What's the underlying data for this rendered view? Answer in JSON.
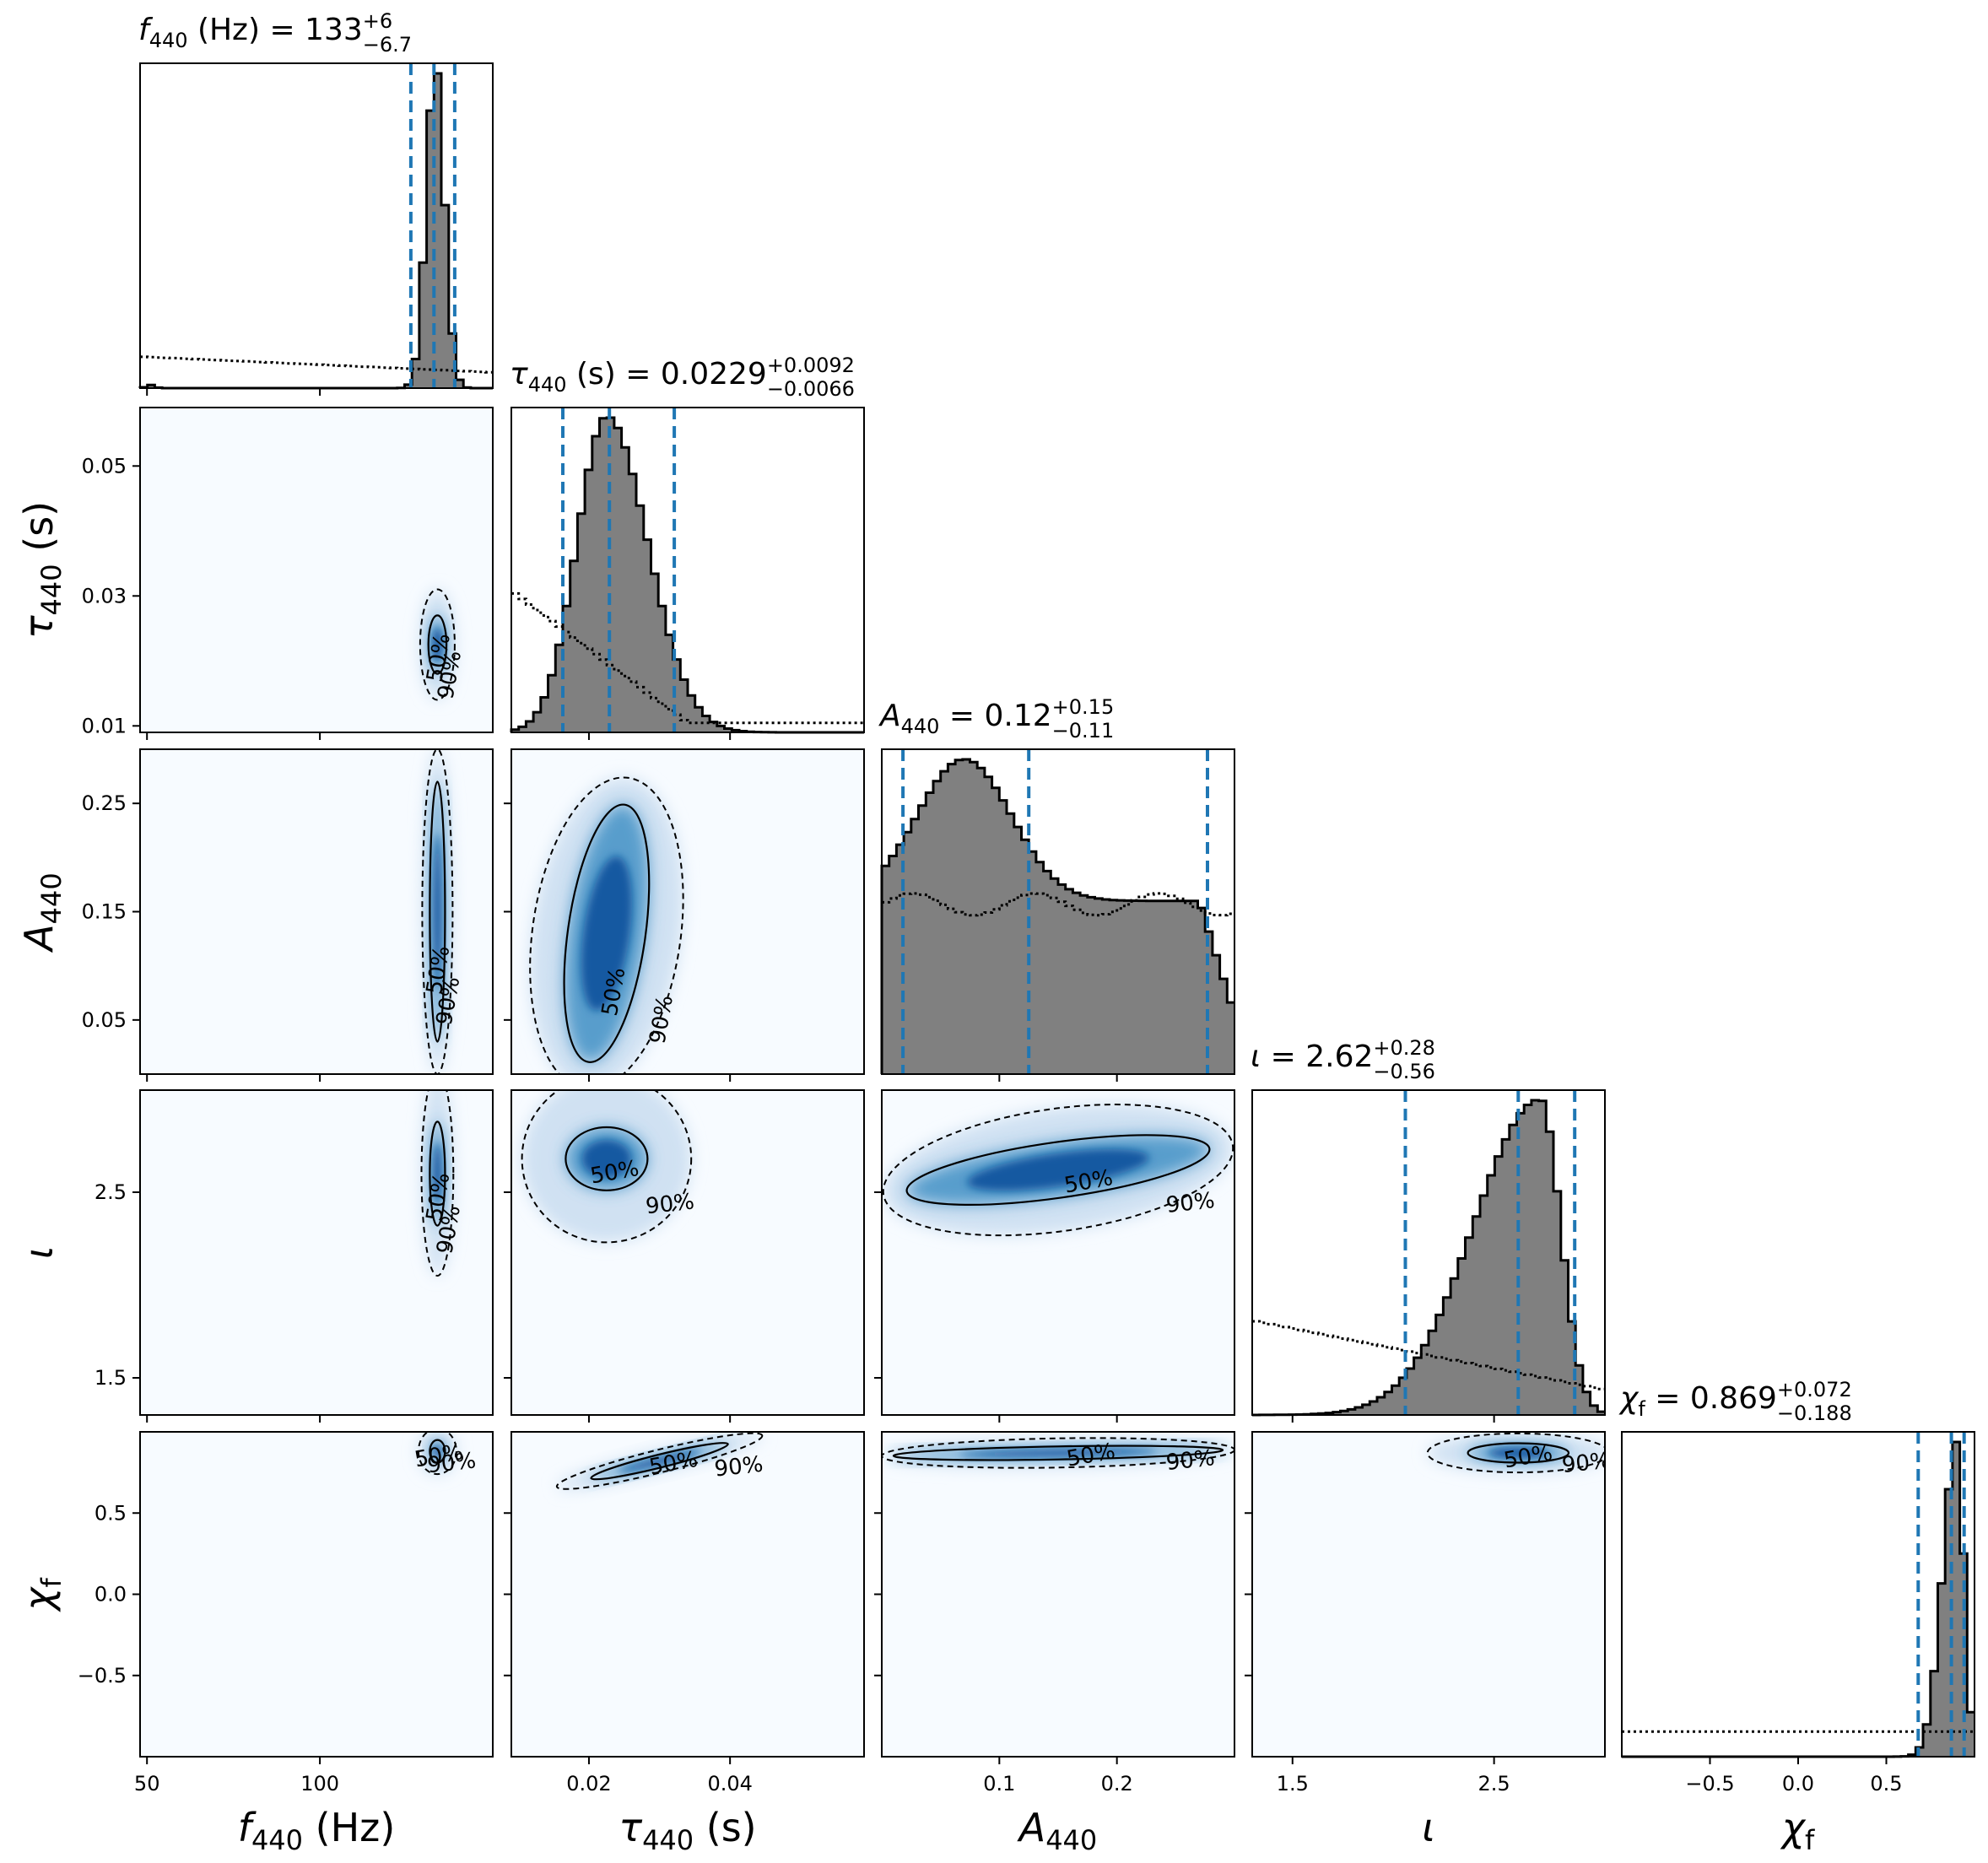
{
  "chart_data": {
    "type": "corner",
    "colors": {
      "hist_fill": "#808080",
      "hist_edge": "#000000",
      "quantile_line": "#1f77b4",
      "density_low": "#f7fbff",
      "density_high": "#08519c"
    },
    "params": [
      {
        "key": "f",
        "label": "f_440 (Hz)",
        "range": [
          48,
          150
        ],
        "ticks": [
          50,
          100
        ],
        "value": "133",
        "err_plus": "+6",
        "err_minus": "−6.7",
        "title": [
          "f",
          "440",
          " (Hz) = 133",
          "+6",
          "−6.7"
        ],
        "quantiles": [
          126.3,
          133,
          139
        ],
        "peak": 133,
        "width": 2.4
      },
      {
        "key": "tau",
        "label": "τ_440 (s)",
        "range": [
          0.009,
          0.059
        ],
        "ticks": [
          0.01,
          0.03,
          0.05
        ],
        "xticks": [
          0.02,
          0.04
        ],
        "value": "0.0229",
        "err_plus": "+0.0092",
        "err_minus": "−0.0066",
        "title": [
          "τ",
          "440",
          " (s) = 0.0229",
          "+0.0092",
          "−0.0066"
        ],
        "quantiles": [
          0.0163,
          0.0229,
          0.0321
        ],
        "peak": 0.0225,
        "width": 0.0045
      },
      {
        "key": "A",
        "label": "A_440",
        "range": [
          0.0,
          0.3
        ],
        "ticks": [
          0.05,
          0.15,
          0.25
        ],
        "xticks": [
          0.1,
          0.2
        ],
        "value": "0.12",
        "err_plus": "+0.15",
        "err_minus": "−0.11",
        "title": [
          "A",
          "440",
          " = 0.12",
          "+0.15",
          "−0.11"
        ],
        "quantiles": [
          0.018,
          0.125,
          0.277
        ],
        "peak": 0.07,
        "width": 0.05
      },
      {
        "key": "iota",
        "label": "ι",
        "range": [
          1.3,
          3.05
        ],
        "ticks": [
          1.5,
          2.5
        ],
        "value": "2.62",
        "err_plus": "+0.28",
        "err_minus": "−0.56",
        "title": [
          "ι",
          "",
          " = 2.62",
          "+0.28",
          "−0.56"
        ],
        "quantiles": [
          2.06,
          2.62,
          2.9
        ],
        "peak": 2.73,
        "width": 0.17
      },
      {
        "key": "chi",
        "label": "χ_f",
        "range": [
          -1.0,
          1.0
        ],
        "ticks": [
          -0.5,
          0.0,
          0.5
        ],
        "value": "0.869",
        "err_plus": "+0.072",
        "err_minus": "−0.188",
        "title": [
          "χ",
          "f",
          " = 0.869",
          "+0.072",
          "−0.188"
        ],
        "quantiles": [
          0.681,
          0.869,
          0.941
        ],
        "peak": 0.9,
        "width": 0.05
      }
    ],
    "contour_labels": [
      "50%",
      "90%"
    ],
    "tick_labels": {
      "f": [
        "50",
        "100"
      ],
      "tau": [
        "0.01",
        "0.03",
        "0.05"
      ],
      "tau_x": [
        "0.02",
        "0.04"
      ],
      "A": [
        "0.05",
        "0.15",
        "0.25"
      ],
      "A_x": [
        "0.1",
        "0.2"
      ],
      "iota": [
        "1.5",
        "2.5"
      ],
      "chi": [
        "−0.5",
        "0.0",
        "0.5"
      ]
    },
    "axis_labels": {
      "f": [
        "f",
        "440",
        " (Hz)"
      ],
      "tau": [
        "τ",
        "440",
        " (s)"
      ],
      "A": [
        "A",
        "440",
        ""
      ],
      "iota": [
        "ι",
        "",
        ""
      ],
      "chi": [
        "χ",
        "f",
        ""
      ]
    }
  }
}
